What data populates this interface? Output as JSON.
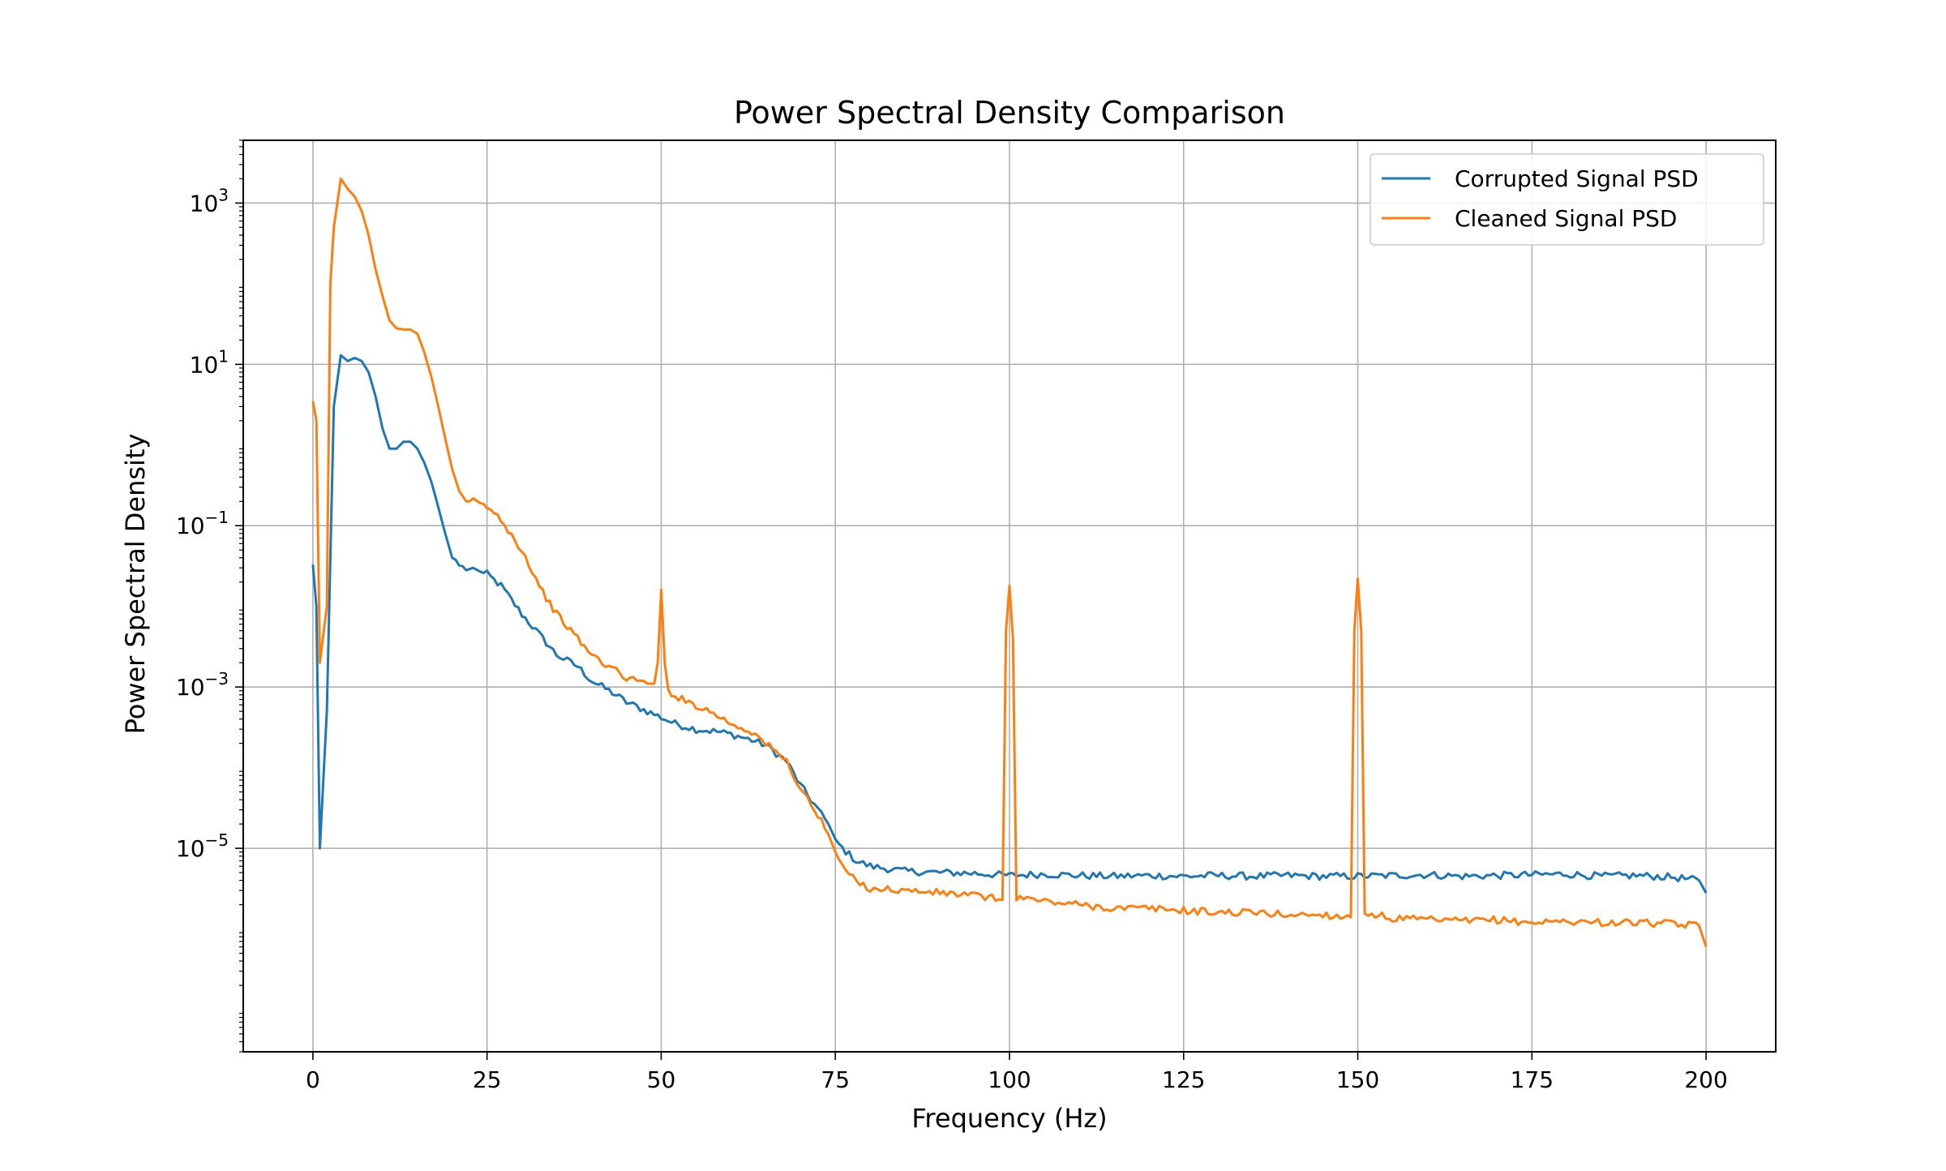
{
  "chart_data": {
    "type": "line",
    "title": "Power Spectral Density Comparison",
    "xlabel": "Frequency (Hz)",
    "ylabel": "Power Spectral Density",
    "xlim": [
      -10,
      210
    ],
    "ylim": [
      3e-08,
      6000
    ],
    "yscale": "log",
    "grid": true,
    "legend_position": "upper right",
    "xticks": [
      0,
      25,
      50,
      75,
      100,
      125,
      150,
      175,
      200
    ],
    "xtick_labels": [
      "0",
      "25",
      "50",
      "75",
      "100",
      "125",
      "150",
      "175",
      "200"
    ],
    "yticks": [
      {
        "value": 1e-05,
        "base": "10",
        "exp": "−5"
      },
      {
        "value": 0.001,
        "base": "10",
        "exp": "−3"
      },
      {
        "value": 0.1,
        "base": "10",
        "exp": "−1"
      },
      {
        "value": 10,
        "base": "10",
        "exp": "1"
      },
      {
        "value": 1000,
        "base": "10",
        "exp": "3"
      }
    ],
    "series": [
      {
        "name": "Corrupted Signal PSD",
        "color": "#1f77b4",
        "x": [
          0,
          0.5,
          1,
          2,
          3,
          4,
          5,
          6,
          7,
          8,
          9,
          10,
          11,
          12,
          13,
          14,
          15,
          16,
          17,
          18,
          19,
          20,
          22,
          23,
          24,
          25,
          27,
          30,
          33,
          35,
          38,
          40,
          43,
          45,
          48,
          50,
          52,
          55,
          58,
          60,
          63,
          65,
          68,
          70,
          72,
          74,
          75,
          76,
          78,
          80,
          85,
          90,
          95,
          100,
          105,
          110,
          115,
          120,
          125,
          130,
          135,
          140,
          145,
          150,
          155,
          160,
          165,
          170,
          175,
          180,
          185,
          190,
          195,
          199,
          200
        ],
        "y": [
          0.033,
          0.01,
          1e-05,
          0.0005,
          3,
          13,
          11,
          12,
          11,
          8,
          4,
          1.6,
          0.9,
          0.9,
          1.1,
          1.1,
          0.9,
          0.6,
          0.35,
          0.17,
          0.08,
          0.04,
          0.028,
          0.03,
          0.027,
          0.025,
          0.018,
          0.008,
          0.004,
          0.0025,
          0.0018,
          0.0012,
          0.00085,
          0.00065,
          0.0005,
          0.00042,
          0.00035,
          0.0003,
          0.00028,
          0.00026,
          0.00022,
          0.00019,
          0.00012,
          6e-05,
          3.5e-05,
          2e-05,
          1.3e-05,
          1e-05,
          7e-06,
          6e-06,
          5.2e-06,
          5e-06,
          4.9e-06,
          4.6e-06,
          4.8e-06,
          4.6e-06,
          4.5e-06,
          4.6e-06,
          4.5e-06,
          4.6e-06,
          4.5e-06,
          4.6e-06,
          4.5e-06,
          4.5e-06,
          4.6e-06,
          4.7e-06,
          4.5e-06,
          4.6e-06,
          4.7e-06,
          4.8e-06,
          4.5e-06,
          4.6e-06,
          4.4e-06,
          4e-06,
          2.8e-06
        ]
      },
      {
        "name": "Cleaned Signal PSD",
        "color": "#ff7f0e",
        "x": [
          0,
          0.5,
          1,
          2,
          2.5,
          3,
          4,
          5,
          6,
          7,
          8,
          9,
          10,
          11,
          12,
          13,
          14,
          15,
          16,
          17,
          18,
          19,
          20,
          21,
          22,
          23,
          25,
          27,
          30,
          33,
          35,
          38,
          40,
          43,
          45,
          48,
          49,
          49.5,
          50,
          50.5,
          51,
          53,
          55,
          58,
          60,
          63,
          65,
          68,
          70,
          72,
          74,
          75,
          76,
          78,
          80,
          85,
          90,
          95,
          99,
          99.5,
          100,
          100.5,
          101,
          105,
          110,
          115,
          120,
          125,
          130,
          135,
          140,
          145,
          149,
          149.5,
          150,
          150.5,
          151,
          155,
          160,
          165,
          170,
          175,
          180,
          185,
          190,
          195,
          199,
          200
        ],
        "y": [
          3.5,
          2,
          0.002,
          0.01,
          100,
          500,
          2000,
          1500,
          1200,
          800,
          400,
          150,
          70,
          35,
          28,
          27,
          27,
          24,
          14,
          7,
          3,
          1.2,
          0.5,
          0.27,
          0.2,
          0.2,
          0.17,
          0.12,
          0.05,
          0.015,
          0.008,
          0.004,
          0.0025,
          0.0017,
          0.0013,
          0.0011,
          0.0011,
          0.002,
          0.016,
          0.002,
          0.0009,
          0.0007,
          0.0006,
          0.00045,
          0.00035,
          0.00028,
          0.0002,
          0.00012,
          5.5e-05,
          3e-05,
          1.5e-05,
          9e-06,
          6e-06,
          3.8e-06,
          3.2e-06,
          3e-06,
          2.8e-06,
          2.6e-06,
          2.3e-06,
          0.005,
          0.018,
          0.004,
          2.5e-06,
          2.2e-06,
          2e-06,
          1.8e-06,
          1.8e-06,
          1.7e-06,
          1.6e-06,
          1.6e-06,
          1.5e-06,
          1.5e-06,
          1.4e-06,
          0.005,
          0.022,
          0.005,
          1.6e-06,
          1.35e-06,
          1.3e-06,
          1.25e-06,
          1.3e-06,
          1.2e-06,
          1.25e-06,
          1.2e-06,
          1.2e-06,
          1.15e-06,
          1.1e-06,
          6e-07
        ]
      }
    ]
  }
}
